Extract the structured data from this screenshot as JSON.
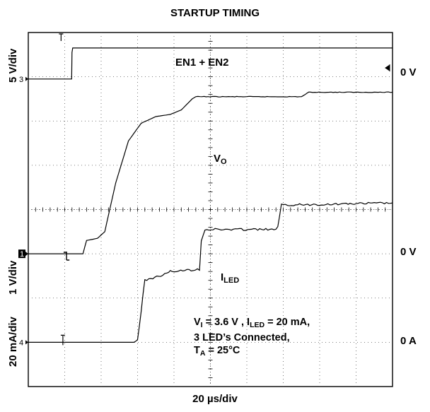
{
  "chart_data": {
    "type": "line",
    "title": "STARTUP TIMING",
    "xlabel": "20 µs/div",
    "grid": true,
    "x_divisions": 10,
    "y_divisions": 8,
    "channels": [
      {
        "marker": "3",
        "scale_label": "5 V/div",
        "ref_label": "0 V",
        "ref_div": 6.95
      },
      {
        "marker": "1",
        "scale_label": "1 V/div",
        "ref_label": "0 V",
        "ref_div": 3.0
      },
      {
        "marker": "4",
        "scale_label": "20 mA/div",
        "ref_label": "0 A",
        "ref_div": 1.0
      }
    ],
    "series": [
      {
        "name": "EN1 + EN2",
        "x": [
          0,
          1.19,
          1.2,
          1.22,
          10
        ],
        "y": [
          6.95,
          6.95,
          7.55,
          7.65,
          7.65
        ]
      },
      {
        "name": "V_O",
        "x": [
          0,
          1.5,
          1.6,
          1.9,
          2.1,
          2.4,
          2.75,
          3.1,
          3.5,
          3.9,
          4.2,
          4.5,
          4.6,
          5.5,
          7.5,
          7.7,
          10
        ],
        "y": [
          3.0,
          3.0,
          3.3,
          3.35,
          3.5,
          4.6,
          5.55,
          5.95,
          6.1,
          6.15,
          6.25,
          6.5,
          6.55,
          6.55,
          6.55,
          6.65,
          6.65
        ]
      },
      {
        "name": "I_LED",
        "x": [
          0,
          2.9,
          3.0,
          3.2,
          3.8,
          3.9,
          4.7,
          4.75,
          4.85,
          6.8,
          6.85,
          6.95,
          10
        ],
        "y": [
          1.0,
          1.0,
          1.05,
          2.4,
          2.55,
          2.6,
          2.65,
          3.3,
          3.55,
          3.55,
          3.6,
          4.1,
          4.15
        ]
      }
    ],
    "annotations": {
      "en": "EN1 + EN2",
      "vo_main": "V",
      "vo_sub": "O",
      "iled_main": "I",
      "iled_sub": "LED",
      "cond_l1_a": "V",
      "cond_l1_b": "I",
      "cond_l1_c": " = 3.6 V , I",
      "cond_l1_d": "LED",
      "cond_l1_e": " = 20 mA,",
      "cond_l2": "3 LED’s Connected,",
      "cond_l3_a": "T",
      "cond_l3_b": "A",
      "cond_l3_c": " = 25°C"
    }
  }
}
